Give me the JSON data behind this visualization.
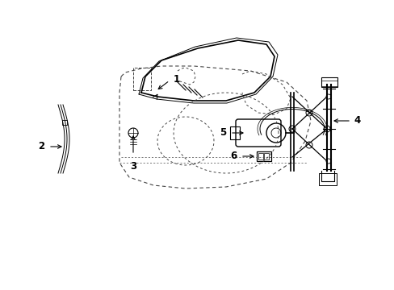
{
  "background_color": "#ffffff",
  "line_color": "#000000",
  "dashed_color": "#444444",
  "label_color": "#000000",
  "fig_width": 4.89,
  "fig_height": 3.6,
  "dpi": 100,
  "label_fontsize": 8.5
}
